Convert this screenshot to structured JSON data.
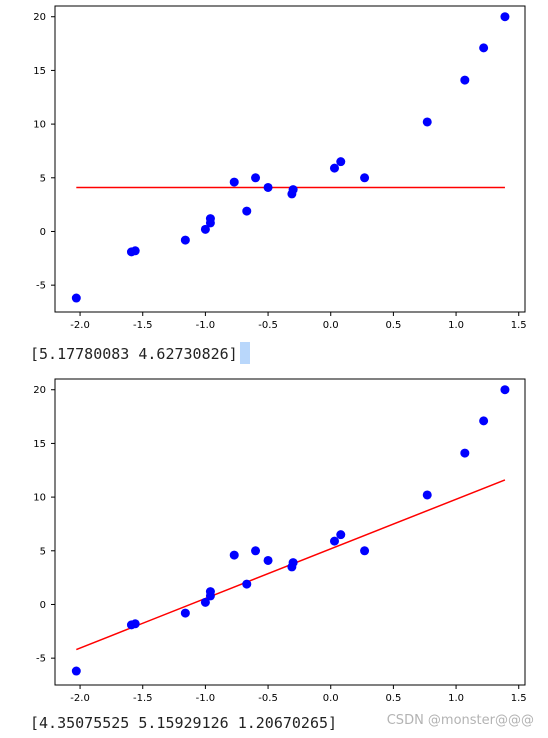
{
  "chart_data": [
    {
      "type": "scatter",
      "title": "",
      "xlabel": "",
      "ylabel": "",
      "xlim": [
        -2.2,
        1.55
      ],
      "ylim": [
        -7.5,
        21
      ],
      "xticks": [
        "-2.0",
        "-1.5",
        "-1.0",
        "-0.5",
        "0.0",
        "0.5",
        "1.0",
        "1.5"
      ],
      "yticks": [
        "20",
        "15",
        "10",
        "5",
        "0",
        "-5"
      ],
      "grid": false,
      "points": {
        "x": [
          -2.03,
          -1.59,
          -1.56,
          -1.16,
          -1.0,
          -0.96,
          -0.96,
          -0.77,
          -0.67,
          -0.6,
          -0.5,
          -0.31,
          -0.3,
          0.03,
          0.08,
          0.27,
          0.77,
          1.07,
          1.22,
          1.39
        ],
        "y": [
          -6.2,
          -1.9,
          -1.8,
          -0.8,
          0.2,
          1.2,
          0.8,
          4.6,
          1.9,
          5.0,
          4.1,
          3.5,
          3.9,
          5.9,
          6.5,
          5.0,
          10.2,
          14.1,
          17.1,
          20.0
        ],
        "color": "#0000ff"
      },
      "fit_line": {
        "x": [
          -2.03,
          1.39
        ],
        "y": [
          4.1,
          4.1
        ],
        "color": "#ff0000"
      },
      "output_text": "[5.17780083 4.62730826]"
    },
    {
      "type": "scatter",
      "title": "",
      "xlabel": "",
      "ylabel": "",
      "xlim": [
        -2.2,
        1.55
      ],
      "ylim": [
        -7.5,
        21
      ],
      "xticks": [
        "-2.0",
        "-1.5",
        "-1.0",
        "-0.5",
        "0.0",
        "0.5",
        "1.0",
        "1.5"
      ],
      "yticks": [
        "20",
        "15",
        "10",
        "5",
        "0",
        "-5"
      ],
      "grid": false,
      "points": {
        "x": [
          -2.03,
          -1.59,
          -1.56,
          -1.16,
          -1.0,
          -0.96,
          -0.96,
          -0.77,
          -0.67,
          -0.6,
          -0.5,
          -0.31,
          -0.3,
          0.03,
          0.08,
          0.27,
          0.77,
          1.07,
          1.22,
          1.39
        ],
        "y": [
          -6.2,
          -1.9,
          -1.8,
          -0.8,
          0.2,
          1.2,
          0.8,
          4.6,
          1.9,
          5.0,
          4.1,
          3.5,
          3.9,
          5.9,
          6.5,
          5.0,
          10.2,
          14.1,
          17.1,
          20.0
        ],
        "color": "#0000ff"
      },
      "fit_line": {
        "x": [
          -2.03,
          1.39
        ],
        "y": [
          -4.2,
          11.6
        ],
        "color": "#ff0000"
      },
      "output_text": "[4.35075525 5.15929126 1.20670265]"
    }
  ],
  "watermark": "CSDN @monster@@@"
}
